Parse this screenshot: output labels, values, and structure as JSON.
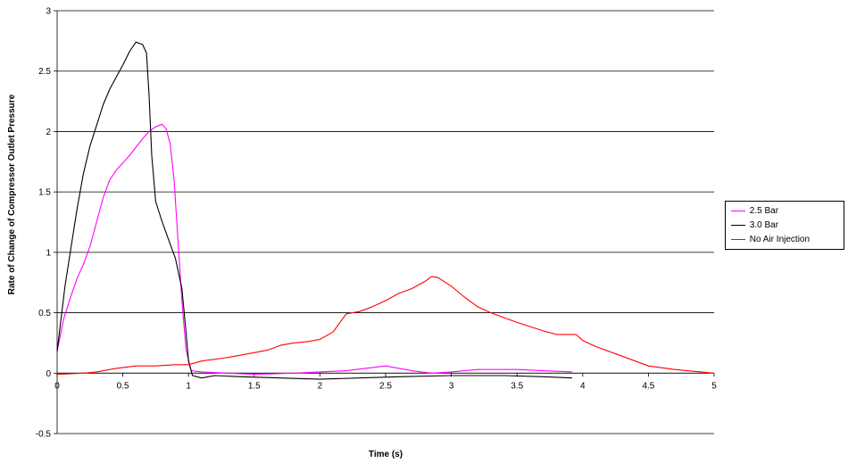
{
  "chart_data": {
    "type": "line",
    "title": "",
    "xlabel": "Time (s)",
    "ylabel": "Rate of Change of Compressor Outlet Pressure",
    "xlim": [
      0,
      5
    ],
    "ylim": [
      -0.5,
      3
    ],
    "x_ticks": [
      "0",
      "0.5",
      "1",
      "1.5",
      "2",
      "2.5",
      "3",
      "3.5",
      "4",
      "4.5",
      "5"
    ],
    "y_ticks": [
      "-0.5",
      "0",
      "0.5",
      "1",
      "1.5",
      "2",
      "2.5",
      "3"
    ],
    "grid": "horizontal",
    "legend_position": "right",
    "series": [
      {
        "name": "2.5 Bar",
        "color": "#ff00ff",
        "points": [
          [
            0,
            0.18
          ],
          [
            0.05,
            0.45
          ],
          [
            0.1,
            0.62
          ],
          [
            0.15,
            0.78
          ],
          [
            0.2,
            0.9
          ],
          [
            0.25,
            1.05
          ],
          [
            0.3,
            1.25
          ],
          [
            0.35,
            1.45
          ],
          [
            0.4,
            1.6
          ],
          [
            0.45,
            1.68
          ],
          [
            0.5,
            1.74
          ],
          [
            0.55,
            1.8
          ],
          [
            0.6,
            1.87
          ],
          [
            0.65,
            1.94
          ],
          [
            0.7,
            2.0
          ],
          [
            0.75,
            2.04
          ],
          [
            0.8,
            2.06
          ],
          [
            0.83,
            2.02
          ],
          [
            0.86,
            1.9
          ],
          [
            0.89,
            1.6
          ],
          [
            0.92,
            1.1
          ],
          [
            0.95,
            0.6
          ],
          [
            0.98,
            0.2
          ],
          [
            1.02,
            0.02
          ],
          [
            1.1,
            0.01
          ],
          [
            1.3,
            0.0
          ],
          [
            1.5,
            -0.01
          ],
          [
            1.8,
            0.0
          ],
          [
            2.0,
            0.01
          ],
          [
            2.2,
            0.02
          ],
          [
            2.5,
            0.06
          ],
          [
            2.7,
            0.02
          ],
          [
            2.85,
            0.0
          ],
          [
            3.0,
            0.01
          ],
          [
            3.2,
            0.03
          ],
          [
            3.5,
            0.03
          ],
          [
            3.7,
            0.02
          ],
          [
            3.92,
            0.01
          ]
        ]
      },
      {
        "name": "3.0 Bar",
        "color": "#000000",
        "points": [
          [
            0,
            0.18
          ],
          [
            0.03,
            0.45
          ],
          [
            0.06,
            0.72
          ],
          [
            0.1,
            1.0
          ],
          [
            0.15,
            1.35
          ],
          [
            0.2,
            1.65
          ],
          [
            0.25,
            1.88
          ],
          [
            0.3,
            2.05
          ],
          [
            0.35,
            2.22
          ],
          [
            0.4,
            2.35
          ],
          [
            0.45,
            2.45
          ],
          [
            0.5,
            2.55
          ],
          [
            0.55,
            2.66
          ],
          [
            0.6,
            2.74
          ],
          [
            0.65,
            2.72
          ],
          [
            0.68,
            2.65
          ],
          [
            0.7,
            2.3
          ],
          [
            0.72,
            1.8
          ],
          [
            0.75,
            1.42
          ],
          [
            0.8,
            1.25
          ],
          [
            0.85,
            1.1
          ],
          [
            0.9,
            0.95
          ],
          [
            0.95,
            0.7
          ],
          [
            0.98,
            0.35
          ],
          [
            1.0,
            0.1
          ],
          [
            1.03,
            -0.02
          ],
          [
            1.1,
            -0.04
          ],
          [
            1.2,
            -0.02
          ],
          [
            1.4,
            -0.03
          ],
          [
            1.7,
            -0.04
          ],
          [
            2.0,
            -0.05
          ],
          [
            2.3,
            -0.04
          ],
          [
            2.6,
            -0.03
          ],
          [
            3.0,
            -0.02
          ],
          [
            3.4,
            -0.02
          ],
          [
            3.7,
            -0.03
          ],
          [
            3.92,
            -0.04
          ]
        ]
      },
      {
        "name": "No Air Injection",
        "color": "#ff0000",
        "points": [
          [
            0,
            -0.01
          ],
          [
            0.2,
            0.0
          ],
          [
            0.3,
            0.01
          ],
          [
            0.45,
            0.04
          ],
          [
            0.6,
            0.06
          ],
          [
            0.75,
            0.06
          ],
          [
            0.9,
            0.07
          ],
          [
            1.0,
            0.07
          ],
          [
            1.1,
            0.1
          ],
          [
            1.3,
            0.13
          ],
          [
            1.5,
            0.17
          ],
          [
            1.6,
            0.19
          ],
          [
            1.7,
            0.23
          ],
          [
            1.8,
            0.25
          ],
          [
            1.9,
            0.26
          ],
          [
            2.0,
            0.28
          ],
          [
            2.1,
            0.34
          ],
          [
            2.2,
            0.49
          ],
          [
            2.3,
            0.51
          ],
          [
            2.4,
            0.55
          ],
          [
            2.5,
            0.6
          ],
          [
            2.6,
            0.66
          ],
          [
            2.7,
            0.7
          ],
          [
            2.8,
            0.76
          ],
          [
            2.85,
            0.8
          ],
          [
            2.9,
            0.79
          ],
          [
            3.0,
            0.72
          ],
          [
            3.1,
            0.63
          ],
          [
            3.2,
            0.55
          ],
          [
            3.3,
            0.5
          ],
          [
            3.5,
            0.42
          ],
          [
            3.7,
            0.35
          ],
          [
            3.8,
            0.32
          ],
          [
            3.95,
            0.32
          ],
          [
            4.0,
            0.27
          ],
          [
            4.1,
            0.22
          ],
          [
            4.3,
            0.14
          ],
          [
            4.5,
            0.06
          ],
          [
            4.7,
            0.03
          ],
          [
            4.9,
            0.01
          ],
          [
            5.0,
            0.0
          ]
        ]
      }
    ]
  }
}
